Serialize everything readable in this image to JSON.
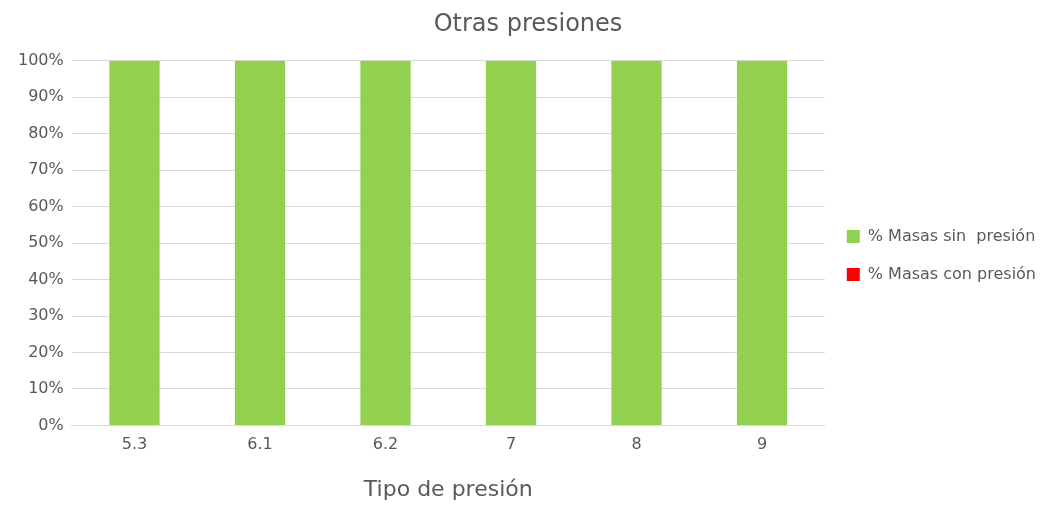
{
  "chart_data": {
    "type": "bar",
    "title": "Otras presiones",
    "xlabel": "Tipo de presión",
    "categories": [
      "5.3",
      "6.1",
      "6.2",
      "7",
      "8",
      "9"
    ],
    "series": [
      {
        "name": "% Masas sin  presión",
        "color": "#92d050",
        "values": [
          100,
          100,
          100,
          100,
          100,
          100
        ]
      },
      {
        "name": "% Masas con presión",
        "color": "#ff0000",
        "values": [
          0,
          0,
          0,
          0,
          0,
          0
        ]
      }
    ],
    "stacked": true,
    "ylim": [
      0,
      100
    ],
    "yticks": [
      {
        "value": 0,
        "label": "0%"
      },
      {
        "value": 10,
        "label": "10%"
      },
      {
        "value": 20,
        "label": "20%"
      },
      {
        "value": 30,
        "label": "30%"
      },
      {
        "value": 40,
        "label": "40%"
      },
      {
        "value": 50,
        "label": "50%"
      },
      {
        "value": 60,
        "label": "60%"
      },
      {
        "value": 70,
        "label": "70%"
      },
      {
        "value": 80,
        "label": "80%"
      },
      {
        "value": 90,
        "label": "90%"
      },
      {
        "value": 100,
        "label": "100%"
      }
    ],
    "grid": "y",
    "legend": "right"
  }
}
